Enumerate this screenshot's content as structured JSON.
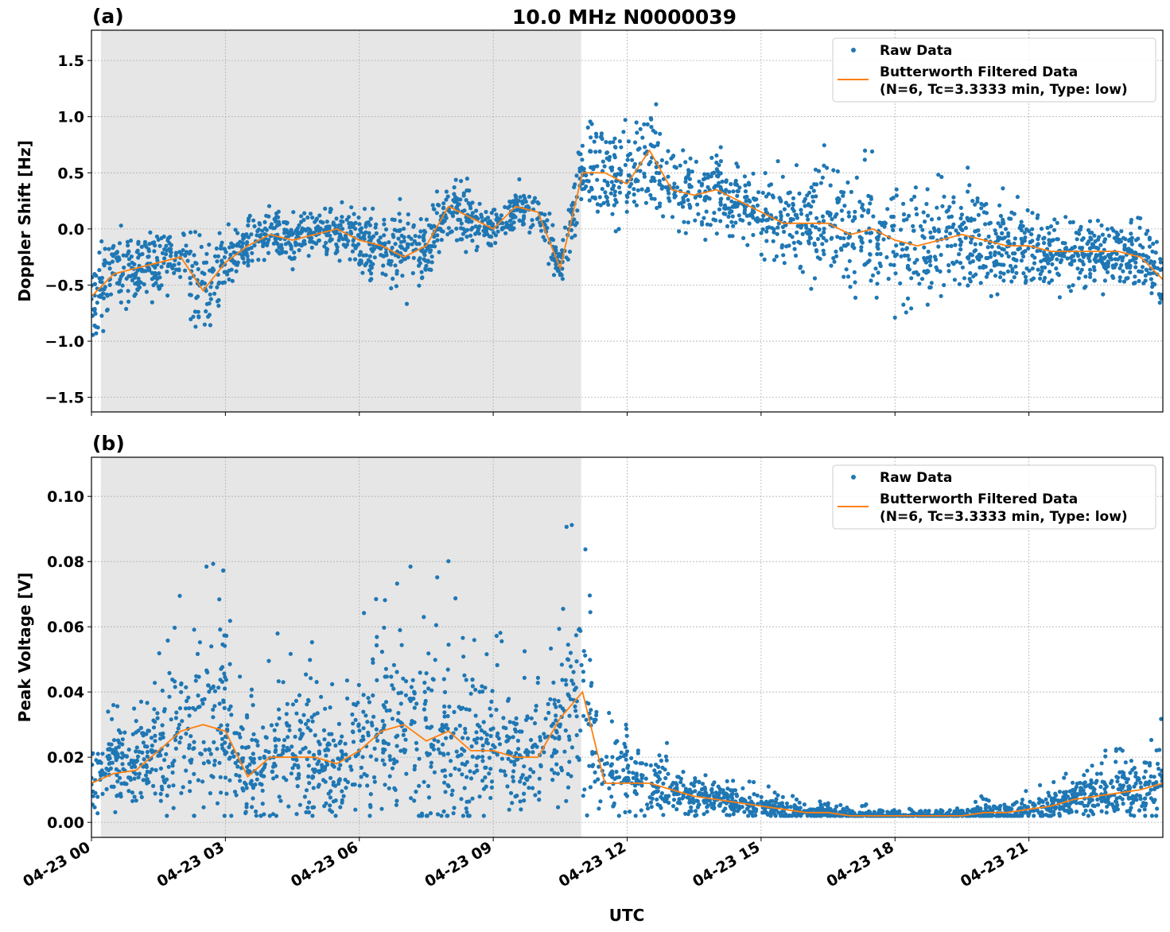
{
  "title": "10.0 MHz N0000039",
  "xlabel": "UTC",
  "x_ticks": [
    "04-23 00",
    "04-23 03",
    "04-23 06",
    "04-23 09",
    "04-23 12",
    "04-23 15",
    "04-23 18",
    "04-23 21"
  ],
  "legend": {
    "raw": "Raw Data",
    "filtered_line1": "Butterworth Filtered Data",
    "filtered_line2": "(N=6, Tc=3.3333 min, Type: low)"
  },
  "colors": {
    "raw": "#1f77b4",
    "filtered": "#ff7f0e",
    "shade": "#e6e6e6"
  },
  "chart_data": [
    {
      "type": "scatter",
      "panel_label": "(a)",
      "ylabel": "Doppler Shift [Hz]",
      "xlim_hours_utc": [
        0,
        24
      ],
      "ylim": [
        -1.63,
        1.77
      ],
      "y_ticks": [
        "1.5",
        "1.0",
        "0.5",
        "0.0",
        "−0.5",
        "−1.0",
        "−1.5"
      ],
      "y_tick_values": [
        1.5,
        1.0,
        0.5,
        0.0,
        -0.5,
        -1.0,
        -1.5
      ],
      "grid": true,
      "legend_position": "top-right",
      "shaded_interval_hours_utc": [
        0.21,
        10.97
      ],
      "x_hours_utc": [
        0,
        0.5,
        1,
        1.5,
        2,
        2.5,
        3,
        3.5,
        4,
        4.5,
        5,
        5.5,
        6,
        6.5,
        7,
        7.5,
        8,
        8.5,
        9,
        9.5,
        10,
        10.5,
        11,
        11.5,
        12,
        12.5,
        13,
        13.5,
        14,
        14.5,
        15,
        15.5,
        16,
        16.5,
        17,
        17.5,
        18,
        18.5,
        19,
        19.5,
        20,
        20.5,
        21,
        21.5,
        22,
        22.5,
        23,
        23.5,
        24
      ],
      "filtered": [
        -0.6,
        -0.4,
        -0.35,
        -0.3,
        -0.25,
        -0.55,
        -0.3,
        -0.15,
        -0.05,
        -0.1,
        -0.05,
        0.0,
        -0.1,
        -0.15,
        -0.25,
        -0.15,
        0.2,
        0.1,
        0.0,
        0.2,
        0.15,
        -0.35,
        0.5,
        0.5,
        0.4,
        0.7,
        0.35,
        0.3,
        0.35,
        0.25,
        0.15,
        0.05,
        0.05,
        0.05,
        -0.05,
        0.0,
        -0.1,
        -0.15,
        -0.1,
        -0.05,
        -0.1,
        -0.15,
        -0.15,
        -0.2,
        -0.2,
        -0.2,
        -0.2,
        -0.25,
        -0.45
      ],
      "raw_spread": [
        0.35,
        0.35,
        0.3,
        0.3,
        0.3,
        0.45,
        0.3,
        0.25,
        0.2,
        0.2,
        0.2,
        0.2,
        0.25,
        0.3,
        0.35,
        0.3,
        0.25,
        0.25,
        0.2,
        0.2,
        0.2,
        0.2,
        0.35,
        0.4,
        0.4,
        0.45,
        0.35,
        0.35,
        0.4,
        0.3,
        0.35,
        0.4,
        0.45,
        0.5,
        0.5,
        0.5,
        0.55,
        0.5,
        0.5,
        0.45,
        0.45,
        0.4,
        0.35,
        0.35,
        0.3,
        0.3,
        0.3,
        0.3,
        0.35
      ]
    },
    {
      "type": "scatter",
      "panel_label": "(b)",
      "ylabel": "Peak Voltage [V]",
      "xlim_hours_utc": [
        0,
        24
      ],
      "ylim": [
        -0.0046,
        0.112
      ],
      "y_ticks": [
        "0.10",
        "0.08",
        "0.06",
        "0.04",
        "0.02",
        "0.00"
      ],
      "y_tick_values": [
        0.1,
        0.08,
        0.06,
        0.04,
        0.02,
        0.0
      ],
      "grid": true,
      "legend_position": "top-right",
      "shaded_interval_hours_utc": [
        0.21,
        10.97
      ],
      "x_hours_utc": [
        0,
        0.5,
        1,
        1.5,
        2,
        2.5,
        3,
        3.5,
        4,
        4.5,
        5,
        5.5,
        6,
        6.5,
        7,
        7.5,
        8,
        8.5,
        9,
        9.5,
        10,
        10.5,
        11,
        11.5,
        12,
        12.5,
        13,
        13.5,
        14,
        14.5,
        15,
        15.5,
        16,
        16.5,
        17,
        17.5,
        18,
        18.5,
        19,
        19.5,
        20,
        20.5,
        21,
        21.5,
        22,
        22.5,
        23,
        23.5,
        24
      ],
      "filtered": [
        0.012,
        0.015,
        0.016,
        0.022,
        0.028,
        0.03,
        0.028,
        0.014,
        0.02,
        0.02,
        0.02,
        0.018,
        0.022,
        0.028,
        0.03,
        0.025,
        0.028,
        0.022,
        0.022,
        0.02,
        0.02,
        0.032,
        0.04,
        0.012,
        0.012,
        0.012,
        0.01,
        0.008,
        0.007,
        0.006,
        0.005,
        0.004,
        0.003,
        0.003,
        0.002,
        0.002,
        0.002,
        0.002,
        0.002,
        0.002,
        0.003,
        0.003,
        0.004,
        0.005,
        0.007,
        0.008,
        0.009,
        0.01,
        0.012
      ],
      "raw_spread": [
        0.01,
        0.012,
        0.012,
        0.018,
        0.025,
        0.03,
        0.028,
        0.012,
        0.025,
        0.022,
        0.02,
        0.018,
        0.025,
        0.03,
        0.03,
        0.028,
        0.03,
        0.025,
        0.022,
        0.02,
        0.02,
        0.03,
        0.035,
        0.012,
        0.012,
        0.01,
        0.008,
        0.006,
        0.005,
        0.004,
        0.004,
        0.003,
        0.002,
        0.002,
        0.002,
        0.002,
        0.002,
        0.002,
        0.002,
        0.002,
        0.003,
        0.003,
        0.004,
        0.005,
        0.006,
        0.008,
        0.009,
        0.01,
        0.012
      ]
    }
  ]
}
